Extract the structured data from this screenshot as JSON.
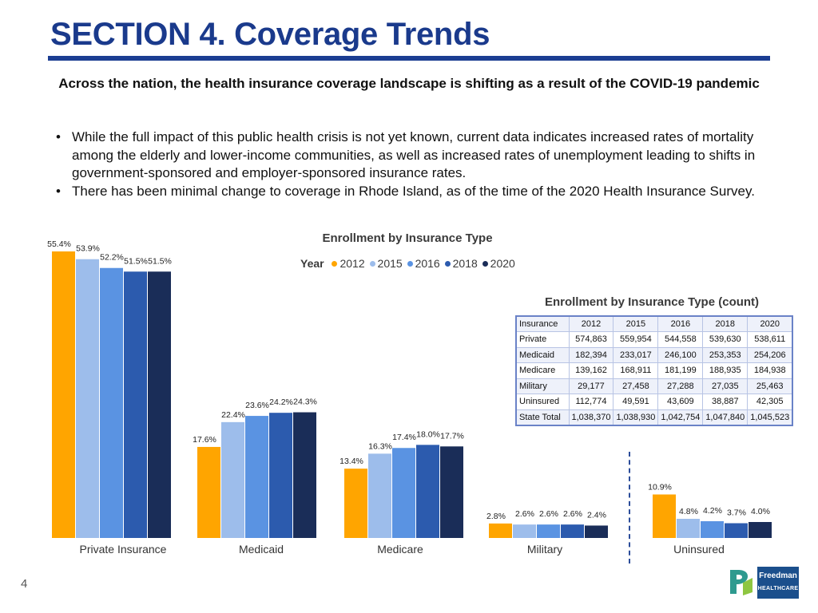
{
  "header": {
    "title": "SECTION 4. Coverage Trends",
    "subtitle": "Across the nation, the health insurance coverage landscape is shifting as a result of the COVID-19 pandemic"
  },
  "bullets": [
    "While the full impact of this public health crisis is not yet known, current data indicates increased rates of mortality among the elderly and lower-income communities, as well as increased rates of unemployment leading to shifts in government-sponsored and employer-sponsored insurance rates.",
    "There has been minimal change to coverage in Rhode Island, as of the time of the 2020 Health Insurance Survey."
  ],
  "legend": {
    "title": "Year",
    "items": [
      {
        "label": "2012",
        "color": "#FFA500"
      },
      {
        "label": "2015",
        "color": "#9DBDEB"
      },
      {
        "label": "2016",
        "color": "#5A93E2"
      },
      {
        "label": "2018",
        "color": "#2C5BAE"
      },
      {
        "label": "2020",
        "color": "#1A2D58"
      }
    ]
  },
  "chart_data": {
    "type": "bar",
    "title": "Enrollment by Insurance Type",
    "legend_title": "Year",
    "categories": [
      "Private Insurance",
      "Medicaid",
      "Medicare",
      "Military",
      "Uninsured"
    ],
    "series": [
      {
        "name": "2012",
        "values": [
          55.4,
          17.6,
          13.4,
          2.8,
          10.9
        ]
      },
      {
        "name": "2015",
        "values": [
          53.9,
          22.4,
          16.3,
          2.6,
          4.8
        ]
      },
      {
        "name": "2016",
        "values": [
          52.2,
          23.6,
          17.4,
          2.6,
          4.2
        ]
      },
      {
        "name": "2018",
        "values": [
          51.5,
          24.2,
          18.0,
          2.6,
          3.7
        ]
      },
      {
        "name": "2020",
        "values": [
          51.5,
          24.3,
          17.7,
          2.4,
          4.0
        ]
      }
    ],
    "value_format": "percent",
    "segments": [
      {
        "categories": [
          "Private Insurance",
          "Medicaid",
          "Medicare",
          "Military"
        ],
        "ylim": [
          0,
          55.4
        ]
      },
      {
        "categories": [
          "Uninsured"
        ],
        "ylim": [
          0,
          23
        ]
      }
    ],
    "xlabel": "",
    "ylabel": "",
    "grid": false
  },
  "table": {
    "title": "Enrollment by Insurance Type (count)",
    "columns": [
      "Insurance",
      "2012",
      "2015",
      "2016",
      "2018",
      "2020"
    ],
    "rows": [
      [
        "Private",
        "574,863",
        "559,954",
        "544,558",
        "539,630",
        "538,611"
      ],
      [
        "Medicaid",
        "182,394",
        "233,017",
        "246,100",
        "253,353",
        "254,206"
      ],
      [
        "Medicare",
        "139,162",
        "168,911",
        "181,199",
        "188,935",
        "184,938"
      ],
      [
        "Military",
        "29,177",
        "27,458",
        "27,288",
        "27,035",
        "25,463"
      ],
      [
        "Uninsured",
        "112,774",
        "49,591",
        "43,609",
        "38,887",
        "42,305"
      ],
      [
        "State Total",
        "1,038,370",
        "1,038,930",
        "1,042,754",
        "1,047,840",
        "1,045,523"
      ]
    ]
  },
  "footer": {
    "page_number": "4"
  },
  "logo": {
    "name": "Freedman",
    "sub": "HEALTHCARE"
  }
}
